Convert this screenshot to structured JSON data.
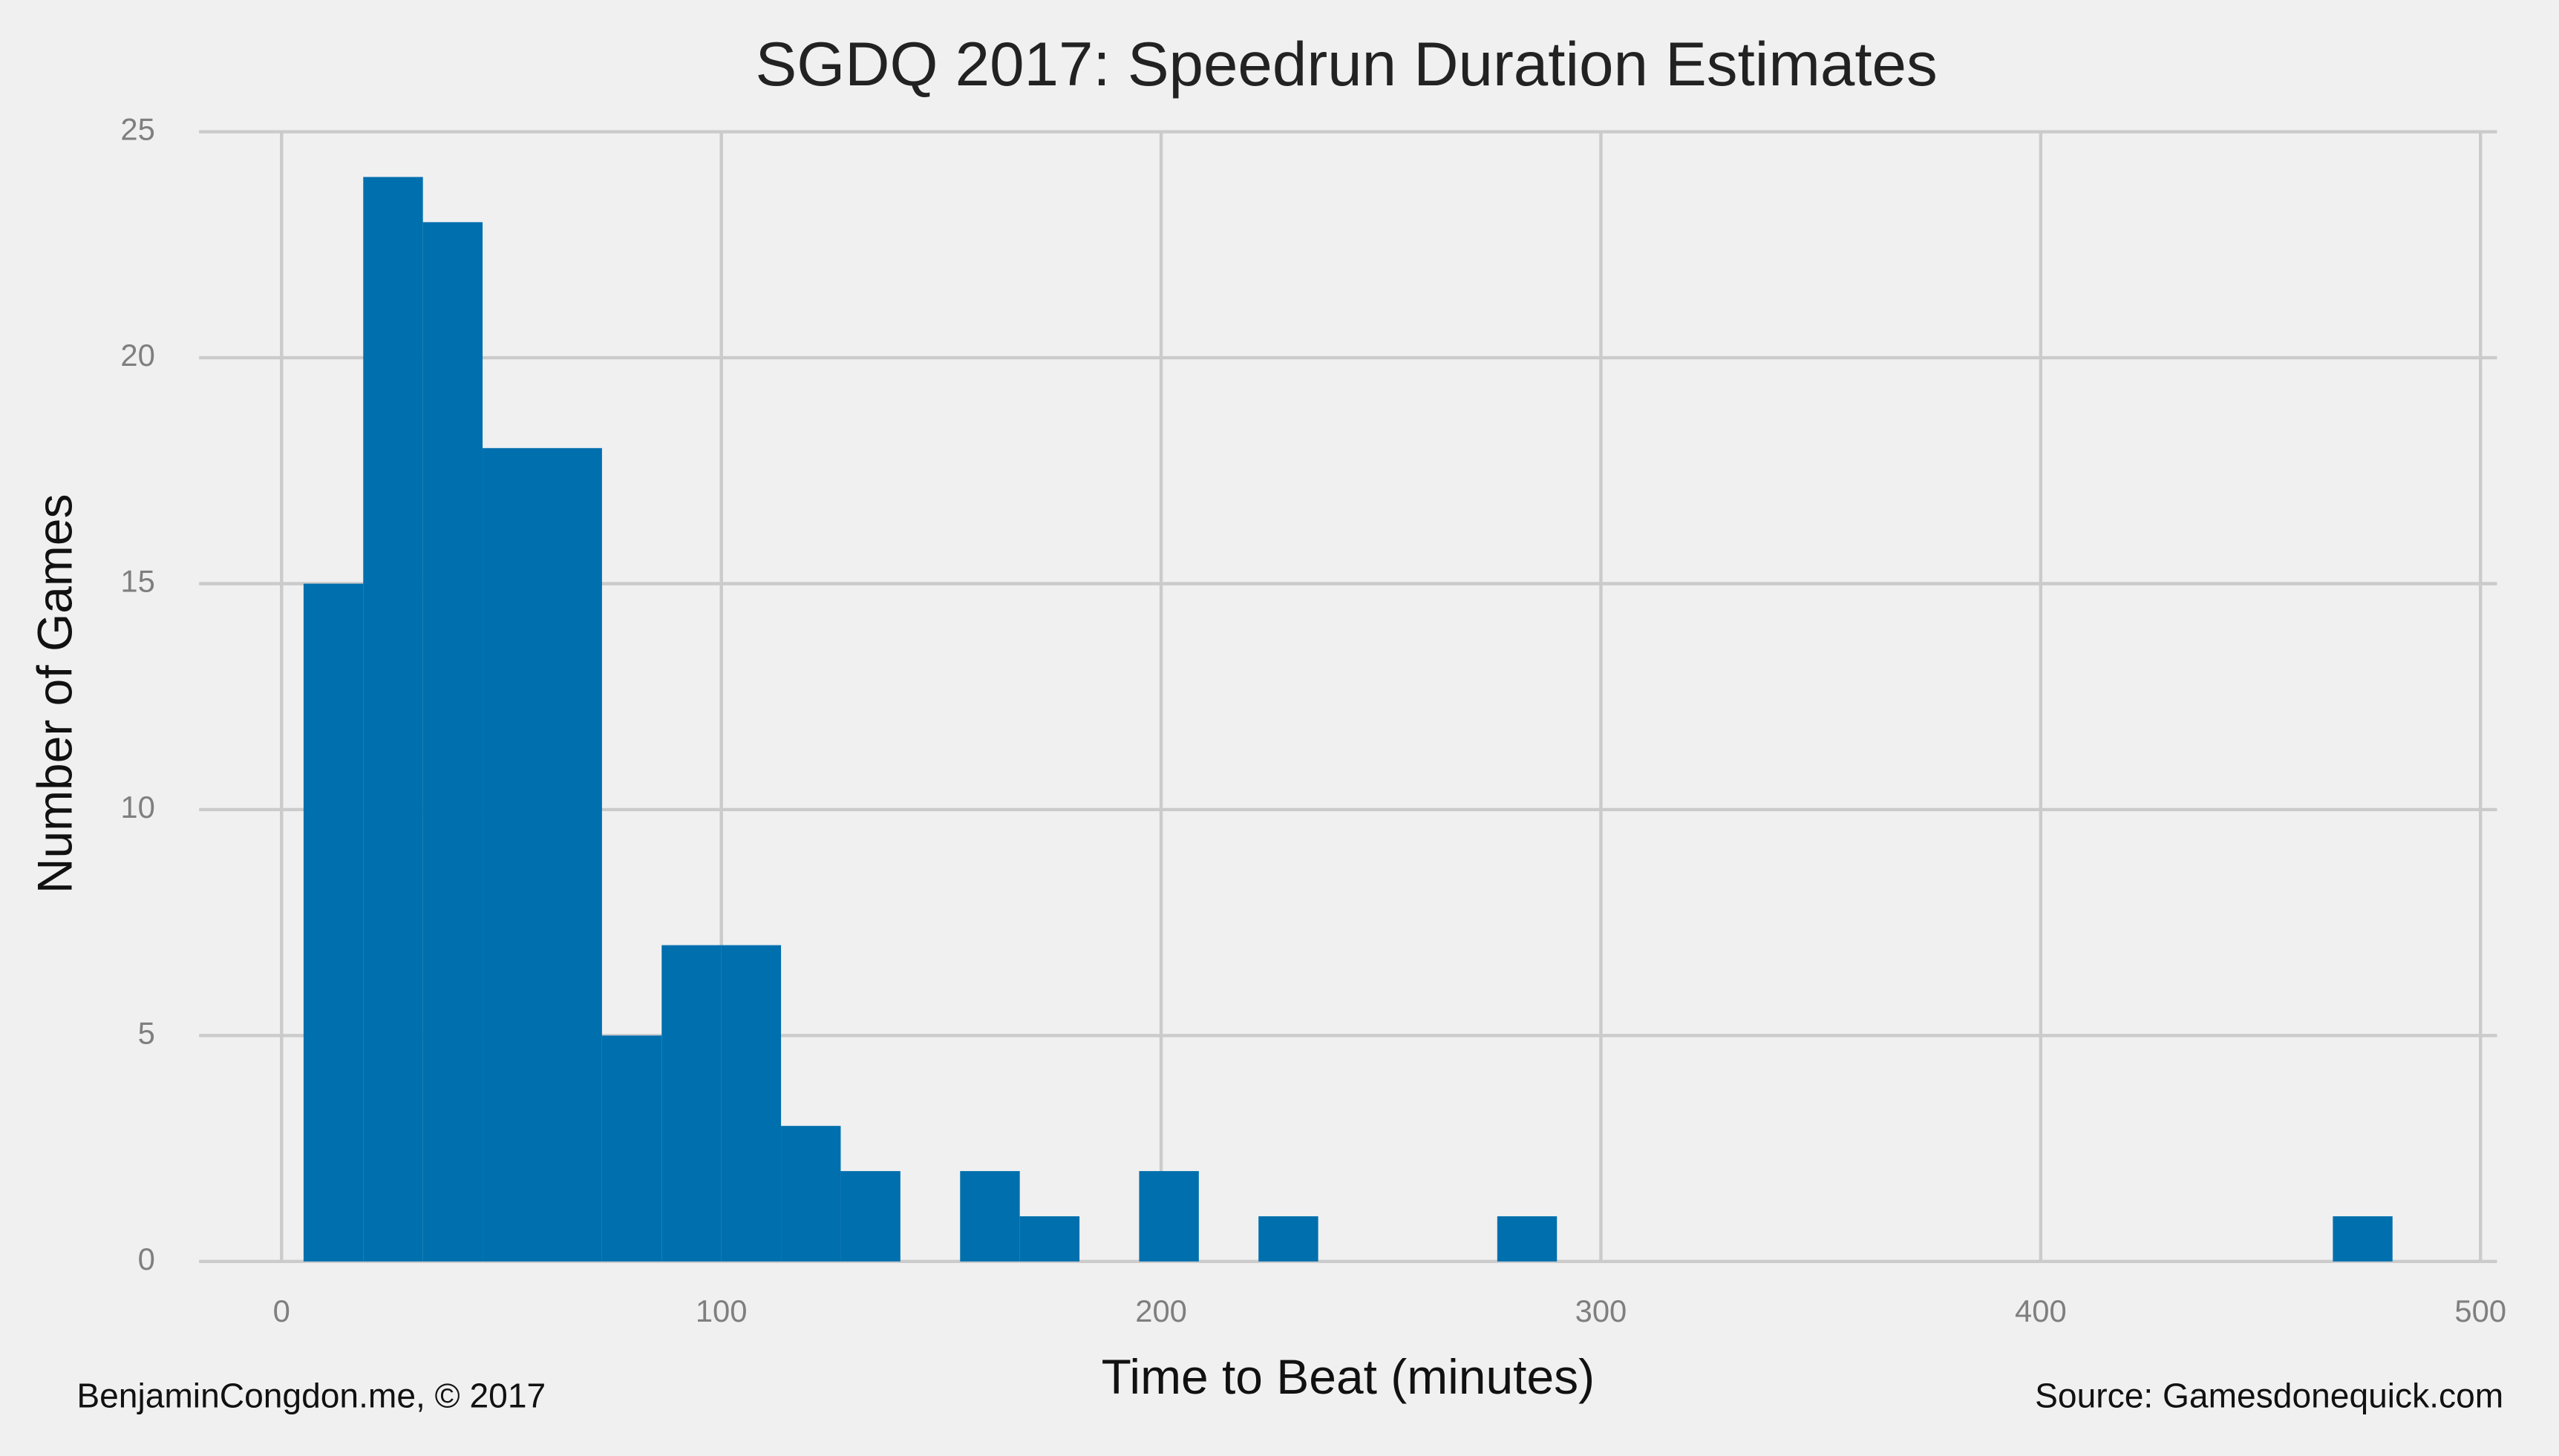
{
  "chart_data": {
    "type": "histogram",
    "title": "SGDQ 2017: Speedrun Duration Estimates",
    "x_label": "Time to Beat (minutes)",
    "y_label": "Number of Games",
    "credit": "BenjaminCongdon.me, © 2017",
    "source": "Source: Gamesdonequick.com",
    "color": "#006fae",
    "grid": true,
    "bins": [
      5,
      18.57,
      32.14,
      45.71,
      59.29,
      72.86,
      86.43,
      100,
      113.57,
      127.14,
      140.71,
      154.29,
      167.86,
      181.43,
      195,
      208.57,
      222.14,
      235.71,
      249.29,
      262.86,
      276.43,
      290,
      303.57,
      317.14,
      330.71,
      344.29,
      357.86,
      371.43,
      385,
      398.57,
      412.14,
      425.71,
      439.29,
      452.86,
      466.43,
      480
    ],
    "counts": [
      15,
      24,
      23,
      18,
      18,
      5,
      7,
      7,
      3,
      2,
      0,
      2,
      1,
      0,
      2,
      0,
      1,
      0,
      0,
      0,
      1,
      0,
      0,
      0,
      0,
      0,
      0,
      0,
      0,
      0,
      0,
      0,
      0,
      0,
      1
    ],
    "xlim": [
      -18.75,
      503.75
    ],
    "ylim": [
      0,
      25.2
    ],
    "xticks": [
      0,
      100,
      200,
      300,
      400,
      500
    ],
    "yticks": [
      0,
      5,
      10,
      15,
      20,
      25
    ]
  }
}
